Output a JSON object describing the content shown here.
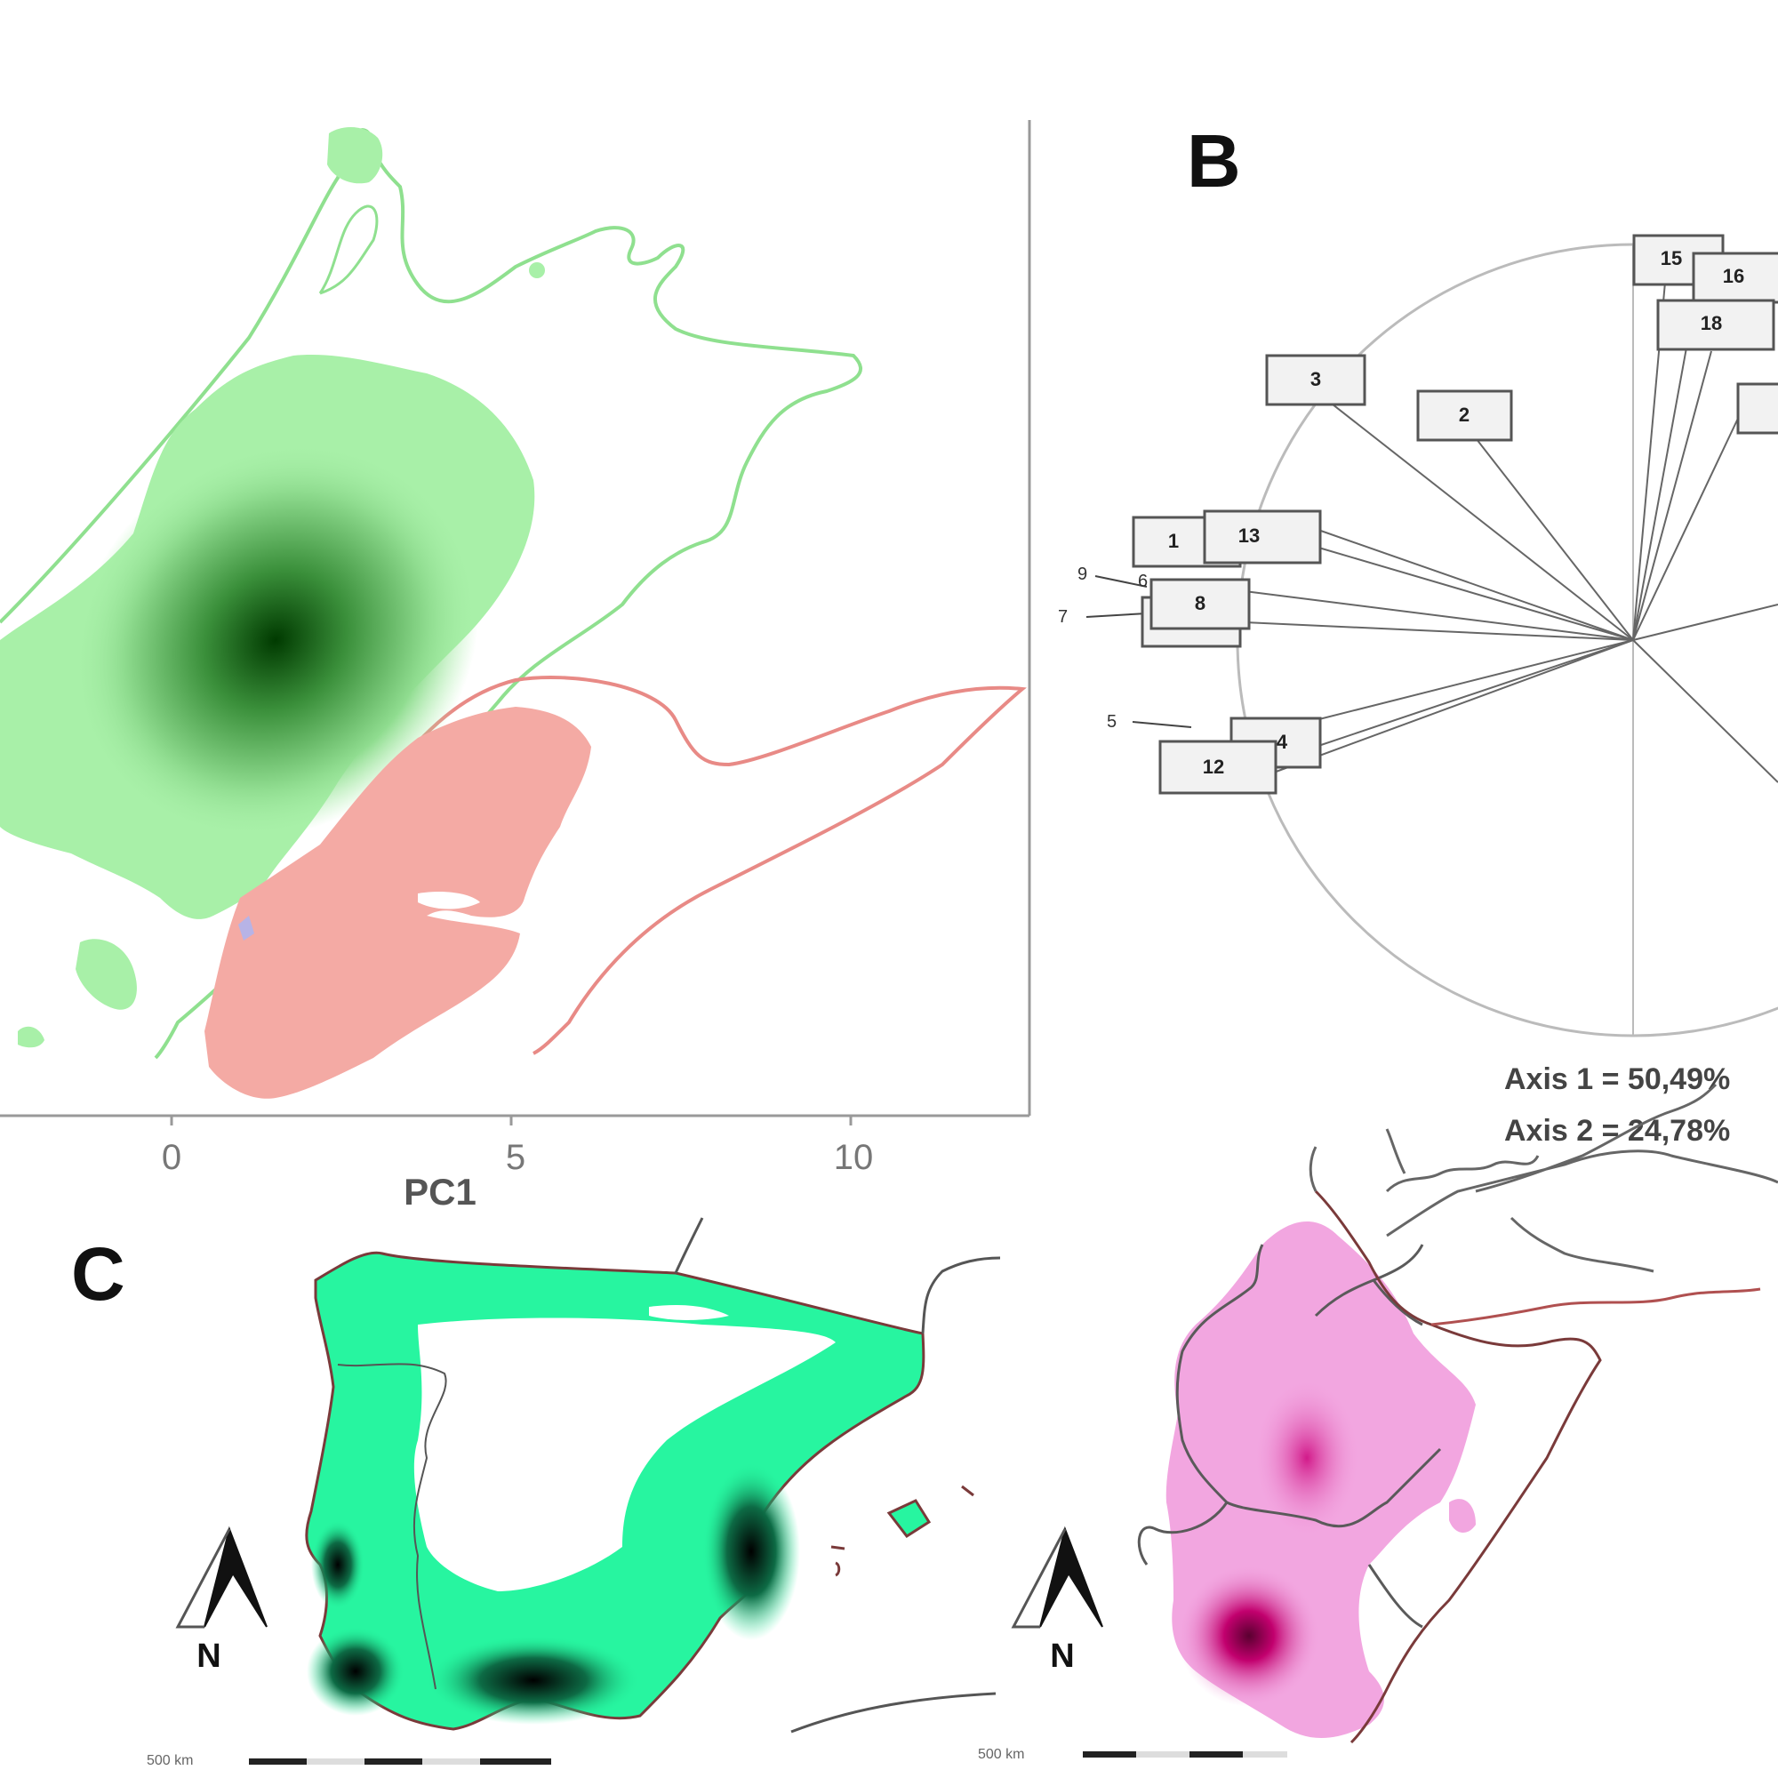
{
  "panel_labels": {
    "b": "B",
    "c": "C"
  },
  "pca_plot": {
    "x_axis_label": "PC1",
    "x_ticks": [
      "0",
      "5",
      "10"
    ]
  },
  "correlation_circle": {
    "variables": [
      "15",
      "16",
      "18",
      "3",
      "2",
      "1",
      "13",
      "8",
      "4",
      "12"
    ],
    "arrow_labels": [
      "9",
      "7",
      "5",
      "6"
    ],
    "axis1_text": "Axis 1 = 50,49%",
    "axis2_text": "Axis 2 = 24,78%"
  },
  "maps": {
    "north_symbol": "N",
    "scale_left": "500 km",
    "scale_right": "500 km"
  },
  "colors": {
    "green_density": "#a8f0a8",
    "green_dark": "#004d00",
    "red_density": "#f4aaa4",
    "map_green": "#27f5a0",
    "map_pink": "#f2a6e0",
    "map_pink_dark": "#c2006e"
  }
}
